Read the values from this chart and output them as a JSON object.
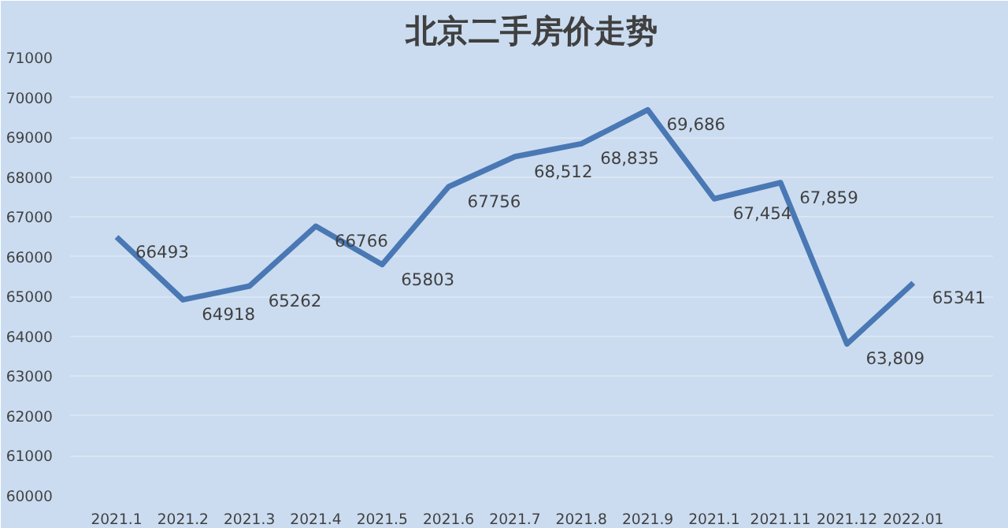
{
  "chart_data": {
    "type": "line",
    "title": "北京二手房价走势",
    "categories": [
      "2021.1",
      "2021.2",
      "2021.3",
      "2021.4",
      "2021.5",
      "2021.6",
      "2021.7",
      "2021.8",
      "2021.9",
      "2021.1",
      "2021.11",
      "2021.12",
      "2022.01"
    ],
    "series": [
      {
        "color": "#4a78b4",
        "values": [
          66493,
          64918,
          65262,
          66766,
          65803,
          67756,
          68512,
          68835,
          69686,
          67454,
          67859,
          63809,
          65341
        ],
        "value_labels": [
          "66493",
          "64918",
          "65262",
          "66766",
          "65803",
          "67756",
          "68,512",
          "68,835",
          "69,686",
          "67,454",
          "67,859",
          "63,809",
          "65341"
        ]
      }
    ],
    "ylim": [
      60000,
      71000
    ],
    "yticks": [
      60000,
      61000,
      62000,
      63000,
      64000,
      65000,
      66000,
      67000,
      68000,
      69000,
      70000,
      71000
    ],
    "grid": "y",
    "marker": "none",
    "line_style": "solid"
  }
}
